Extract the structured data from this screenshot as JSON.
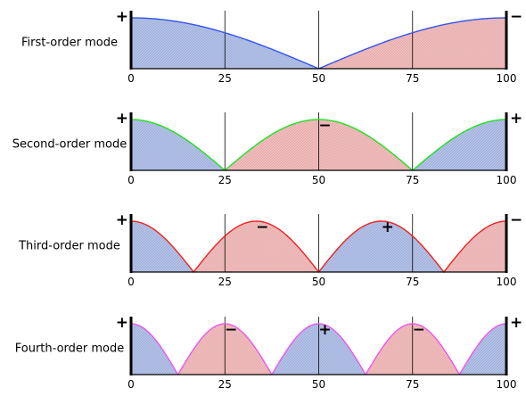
{
  "chart_data": [
    {
      "type": "line",
      "label": "First-order mode",
      "color": "#3355ee",
      "mode_order": 1,
      "x_ticks": [
        "0",
        "25",
        "50",
        "75",
        "100"
      ],
      "xlim": [
        0,
        100
      ],
      "signs": [
        {
          "text": "+",
          "x": 0,
          "side": "left"
        },
        {
          "text": "−",
          "x": 100,
          "side": "right"
        }
      ]
    },
    {
      "type": "line",
      "label": "Second-order mode",
      "color": "#22e022",
      "mode_order": 2,
      "x_ticks": [
        "0",
        "25",
        "50",
        "75",
        "100"
      ],
      "xlim": [
        0,
        100
      ],
      "signs": [
        {
          "text": "+",
          "x": 0,
          "side": "left"
        },
        {
          "text": "−",
          "x": 50,
          "side": "inner"
        },
        {
          "text": "+",
          "x": 100,
          "side": "right"
        }
      ]
    },
    {
      "type": "line",
      "label": "Third-order mode",
      "color": "#ee2222",
      "mode_order": 3,
      "x_ticks": [
        "0",
        "25",
        "50",
        "75",
        "100"
      ],
      "xlim": [
        0,
        100
      ],
      "signs": [
        {
          "text": "+",
          "x": 0,
          "side": "left"
        },
        {
          "text": "−",
          "x": 33.3,
          "side": "inner"
        },
        {
          "text": "+",
          "x": 66.7,
          "side": "inner"
        },
        {
          "text": "−",
          "x": 100,
          "side": "right"
        }
      ]
    },
    {
      "type": "line",
      "label": "Fourth-order mode",
      "color": "#ee55ee",
      "mode_order": 4,
      "x_ticks": [
        "0",
        "25",
        "50",
        "75",
        "100"
      ],
      "xlim": [
        0,
        100
      ],
      "signs": [
        {
          "text": "+",
          "x": 0,
          "side": "left"
        },
        {
          "text": "−",
          "x": 25,
          "side": "inner"
        },
        {
          "text": "+",
          "x": 50,
          "side": "inner"
        },
        {
          "text": "−",
          "x": 75,
          "side": "inner"
        },
        {
          "text": "+",
          "x": 100,
          "side": "right"
        }
      ]
    }
  ],
  "fill_colors": {
    "positive": "#b3c1e6",
    "negative": "#f0bcbc"
  }
}
